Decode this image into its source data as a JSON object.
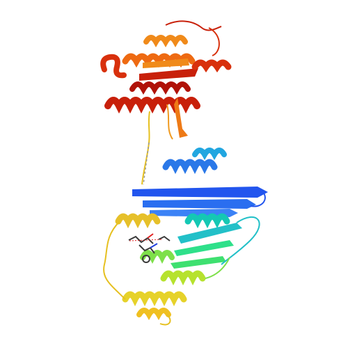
{
  "image": {
    "kind": "protein ribbon cartoon",
    "background": "#ffffff",
    "domains": [
      {
        "name": "n-terminal-domain",
        "colors": [
          "#2255ee",
          "#3b82f6",
          "#22a6e0",
          "#14c8b4",
          "#2ee08a"
        ]
      },
      {
        "name": "middle-domain",
        "colors": [
          "#7ee04a",
          "#b6e22e",
          "#e6d22a",
          "#f0c020"
        ]
      },
      {
        "name": "c-terminal-domain",
        "colors": [
          "#f08a1a",
          "#ee6a12",
          "#e24a0e",
          "#c8200a",
          "#b01208"
        ]
      }
    ],
    "ligand": {
      "name": "bound-ligand",
      "colors": [
        "#3a3a3a",
        "#e02020",
        "#2040e0"
      ]
    }
  }
}
